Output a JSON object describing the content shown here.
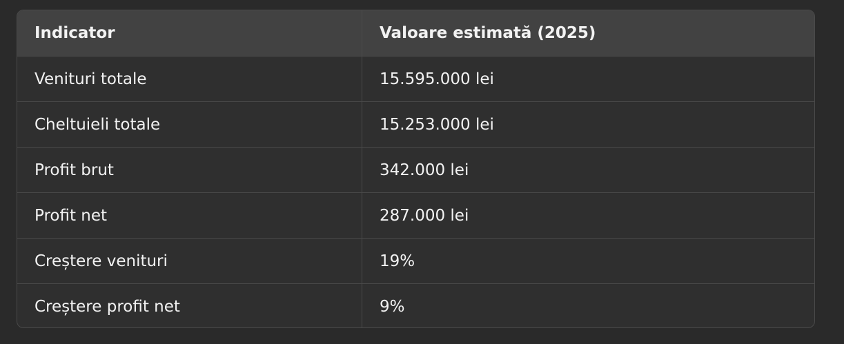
{
  "table": {
    "header": [
      "Indicator",
      "Valoare estimată (2025)"
    ],
    "rows": [
      [
        "Venituri totale",
        "15.595.000 lei"
      ],
      [
        "Cheltuieli totale",
        "15.253.000 lei"
      ],
      [
        "Profit brut",
        "342.000 lei"
      ],
      [
        "Profit net",
        "287.000 lei"
      ],
      [
        "Creștere venituri",
        "19%"
      ],
      [
        "Creștere profit net",
        "9%"
      ]
    ]
  }
}
